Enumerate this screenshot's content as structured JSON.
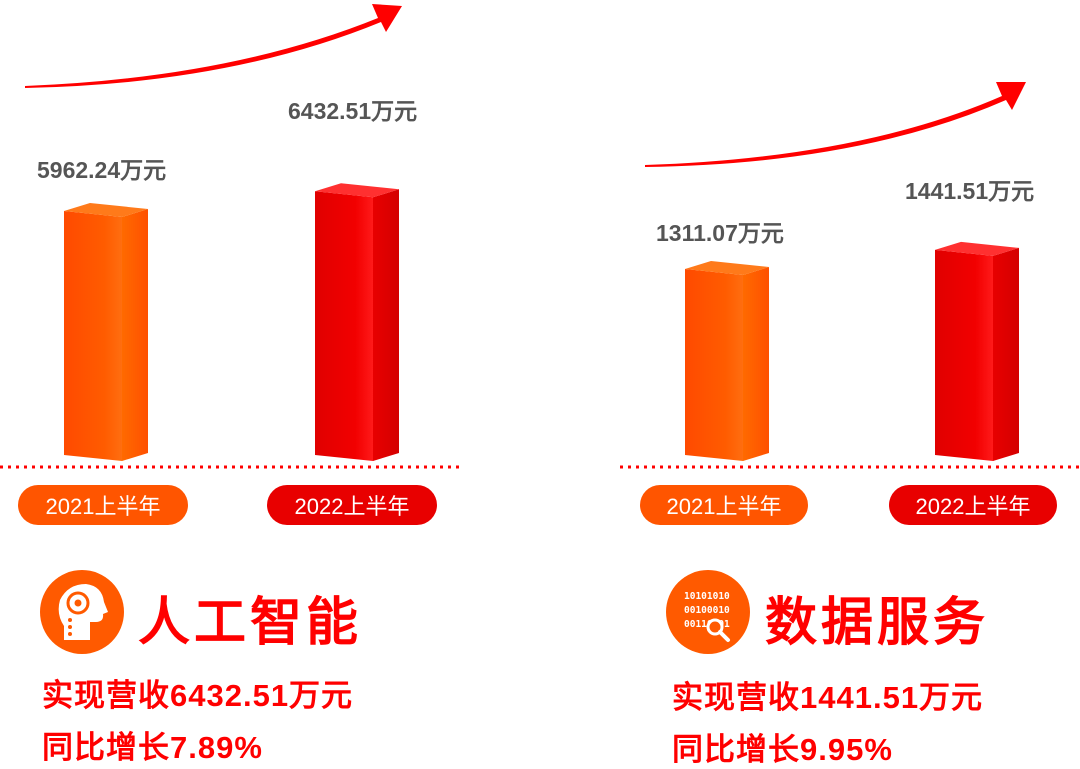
{
  "chart_data": [
    {
      "type": "bar",
      "categories": [
        "2021上半年",
        "2022上半年"
      ],
      "values": [
        5962.24,
        6432.51
      ],
      "value_labels": [
        "5962.24万元",
        "6432.51万元"
      ],
      "colors": [
        "#ff5500",
        "#e60000"
      ],
      "title": "人工智能",
      "summary": [
        "实现营收6432.51万元",
        "同比增长7.89%"
      ]
    },
    {
      "type": "bar",
      "categories": [
        "2021上半年",
        "2022上半年"
      ],
      "values": [
        1311.07,
        1441.51
      ],
      "value_labels": [
        "1311.07万元",
        "1441.51万元"
      ],
      "colors": [
        "#ff5500",
        "#e60000"
      ],
      "title": "数据服务",
      "summary": [
        "实现营收1441.51万元",
        "同比增长9.95%"
      ]
    }
  ],
  "icons": {
    "ai": "head-gear-icon",
    "data": "binary-search-icon",
    "data_binary": [
      "10101010",
      "00100010",
      "00110101"
    ]
  }
}
